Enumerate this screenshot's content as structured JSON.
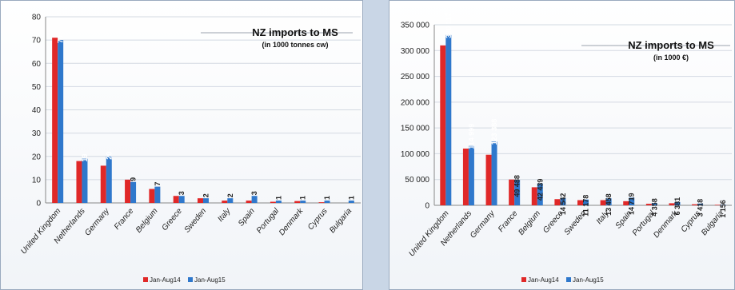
{
  "colors": {
    "jan_aug14": "#e02828",
    "jan_aug15": "#2f78cc"
  },
  "chart_data": [
    {
      "type": "bar",
      "title": "NZ imports to MS",
      "subtitle": "(in 1000 tonnes cw)",
      "categories": [
        "United Kingdom",
        "Netherlands",
        "Germany",
        "France",
        "Belgium",
        "Greece",
        "Sweden",
        "Italy",
        "Spain",
        "Portugal",
        "Denmark",
        "Cyprus",
        "Bulgaria"
      ],
      "series": [
        {
          "name": "Jan-Aug14",
          "values": [
            71,
            18,
            16,
            10,
            6,
            3,
            2,
            1,
            1,
            0.5,
            0.8,
            0.3,
            0
          ]
        },
        {
          "name": "Jan-Aug15",
          "values": [
            70,
            19,
            20,
            9,
            7,
            3,
            2,
            2,
            3,
            1,
            1,
            1,
            1
          ]
        }
      ],
      "data_labels": [
        "70",
        "19",
        "20",
        "9",
        "7",
        "3",
        "2",
        "2",
        "3",
        "1",
        "1",
        "1",
        "1"
      ],
      "ylim": [
        0,
        80
      ],
      "yticks": [
        "0",
        "10",
        "20",
        "30",
        "40",
        "50",
        "60",
        "70",
        "80"
      ],
      "grid": true,
      "legend": "bottom"
    },
    {
      "type": "bar",
      "title": "NZ imports to MS",
      "subtitle": "(in 1000 €)",
      "categories": [
        "United Kingdom",
        "Netherlands",
        "Germany",
        "France",
        "Belgium",
        "Greece",
        "Sweden",
        "Italy",
        "Spain",
        "Portugal",
        "Denmark",
        "Cyprus",
        "Bulgaria"
      ],
      "series": [
        {
          "name": "Jan-Aug14",
          "values": [
            310000,
            110000,
            98000,
            50000,
            35000,
            12000,
            10000,
            10000,
            8000,
            3000,
            4000,
            2000,
            1000
          ]
        },
        {
          "name": "Jan-Aug15",
          "values": [
            330117,
            114999,
            123388,
            49488,
            42439,
            14542,
            11178,
            13458,
            14719,
            4358,
            6381,
            3418,
            1156
          ]
        }
      ],
      "data_labels": [
        "330 117",
        "114 999",
        "123 388",
        "49 488",
        "42 439",
        "14 542",
        "11 178",
        "13 458",
        "14 719",
        "4 358",
        "6 381",
        "3 418",
        "1 156"
      ],
      "ylim": [
        0,
        350000
      ],
      "yticks": [
        "0",
        "50 000",
        "100 000",
        "150 000",
        "200 000",
        "250 000",
        "300 000",
        "350 000"
      ],
      "grid": true,
      "legend": "bottom"
    }
  ]
}
